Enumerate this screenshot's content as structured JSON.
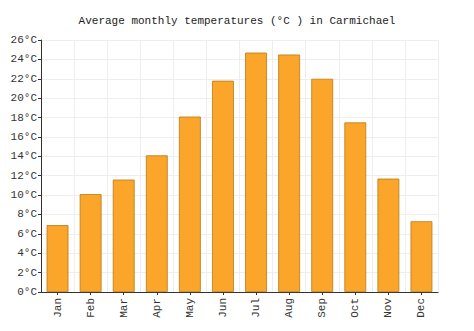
{
  "chart_data": {
    "type": "bar",
    "title": "Average monthly temperatures (°C ) in Carmichael",
    "categories": [
      "Jan",
      "Feb",
      "Mar",
      "Apr",
      "May",
      "Jun",
      "Jul",
      "Aug",
      "Sep",
      "Oct",
      "Nov",
      "Dec"
    ],
    "values": [
      6.9,
      10.1,
      11.6,
      14.1,
      18.1,
      21.8,
      24.7,
      24.5,
      22.0,
      17.5,
      11.7,
      7.3
    ],
    "color": "#fba62a",
    "ylim": [
      0,
      26
    ],
    "yticks": [
      {
        "value": 0,
        "label": "0°C"
      },
      {
        "value": 2,
        "label": "2°C"
      },
      {
        "value": 4,
        "label": "4°C"
      },
      {
        "value": 6,
        "label": "6°C"
      },
      {
        "value": 8,
        "label": "8°C"
      },
      {
        "value": 10,
        "label": "10°C"
      },
      {
        "value": 12,
        "label": "12°C"
      },
      {
        "value": 14,
        "label": "14°C"
      },
      {
        "value": 16,
        "label": "16°C"
      },
      {
        "value": 18,
        "label": "18°C"
      },
      {
        "value": 20,
        "label": "20°C"
      },
      {
        "value": 22,
        "label": "22°C"
      },
      {
        "value": 24,
        "label": "24°C"
      },
      {
        "value": 26,
        "label": "26°C"
      }
    ],
    "grid": true
  }
}
